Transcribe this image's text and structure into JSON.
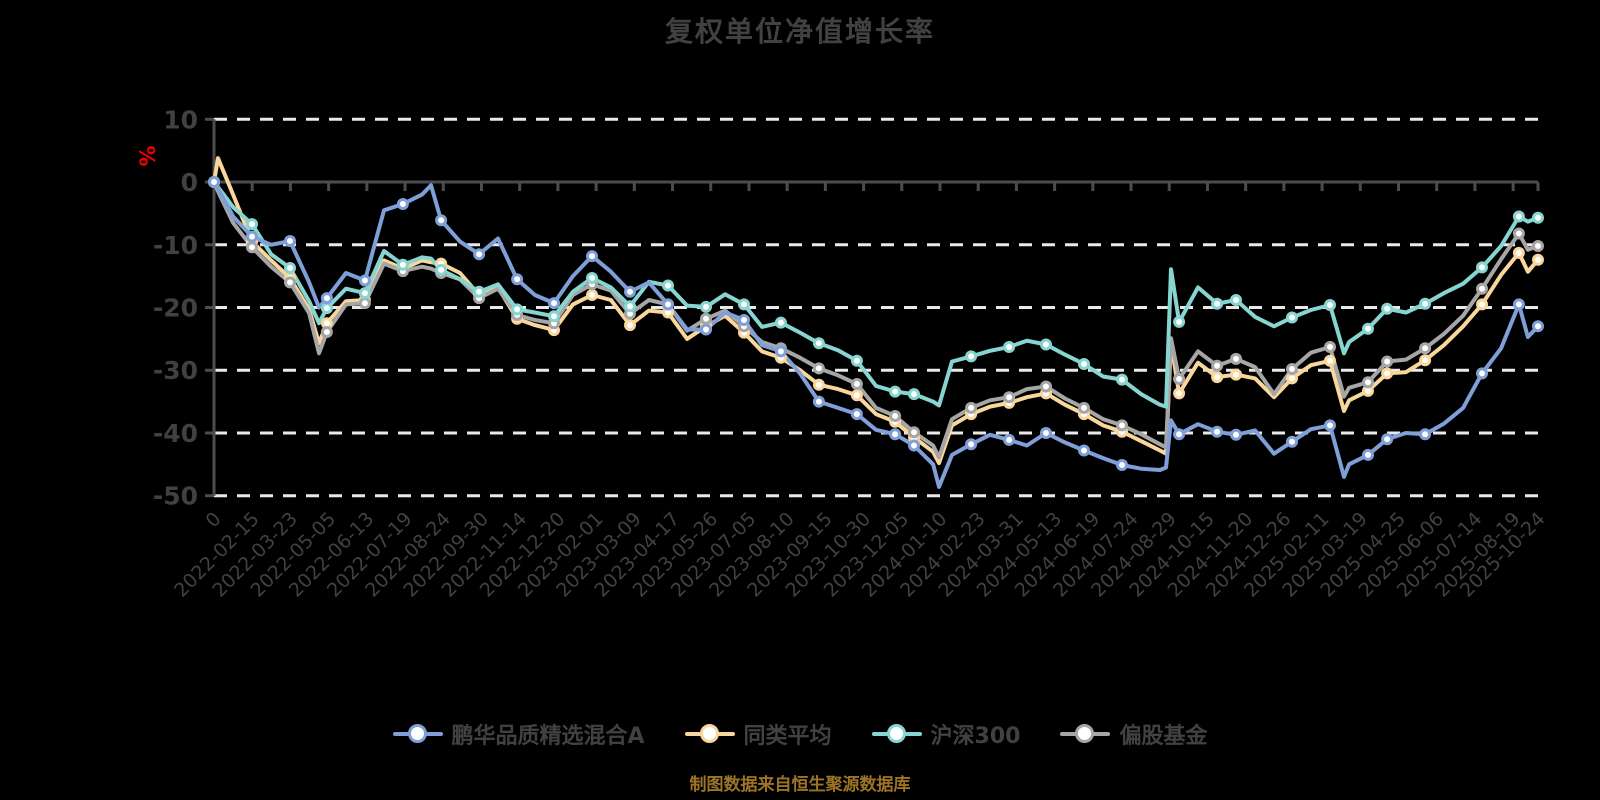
{
  "title": "复权单位净值增长率",
  "y_unit": "%",
  "footer": "制图数据来自恒生聚源数据库",
  "colors": {
    "background": "#000000",
    "title_text": "#414141",
    "axis_line": "#4C4C4C",
    "grid_line": "#E9E9E9",
    "tick_label": "#414141",
    "unit_label": "#EE0000",
    "footer_text": "#9D7426",
    "marker_fill": "#FFFFFF"
  },
  "chart_data": {
    "type": "line",
    "title": "复权单位净值增长率",
    "xlabel": "",
    "ylabel": "%",
    "ylim": [
      -50,
      10
    ],
    "y_ticks": [
      10,
      0,
      -10,
      -20,
      -30,
      -40,
      -50
    ],
    "y_gridlines": [
      10,
      -10,
      -20,
      -30,
      -40,
      -50
    ],
    "grid": "horizontal dashed white lines; solid dark line at 0 with down ticks",
    "legend_position": "bottom-center",
    "x_labels": [
      "0",
      "2022-02-15",
      "2022-03-23",
      "2022-05-05",
      "2022-06-13",
      "2022-07-19",
      "2022-08-24",
      "2022-09-30",
      "2022-11-14",
      "2022-12-20",
      "2023-02-01",
      "2023-03-09",
      "2023-04-17",
      "2023-05-26",
      "2023-07-05",
      "2023-08-10",
      "2023-09-15",
      "2023-10-30",
      "2023-12-05",
      "2024-01-10",
      "2024-02-23",
      "2024-03-31",
      "2024-05-13",
      "2024-06-19",
      "2024-07-24",
      "2024-08-29",
      "2024-10-15",
      "2024-11-20",
      "2024-12-26",
      "2025-02-11",
      "2025-03-19",
      "2025-04-25",
      "2025-06-06",
      "2025-07-14",
      "2025-08-19",
      "2025-10-24"
    ],
    "x": [
      0.0,
      0.3,
      1.44,
      2.87,
      4.31,
      5.74,
      7.18,
      7.93,
      8.53,
      9.97,
      11.4,
      12.84,
      14.27,
      15.71,
      16.39,
      17.15,
      18.58,
      20.02,
      21.45,
      22.89,
      24.24,
      25.68,
      27.11,
      28.55,
      29.98,
      31.42,
      32.85,
      34.29,
      35.73,
      37.16,
      38.6,
      40.03,
      41.39,
      42.82,
      44.26,
      45.69,
      47.13,
      48.56,
      50.0,
      51.44,
      52.87,
      54.31,
      54.76,
      55.74,
      57.18,
      58.61,
      60.05,
      61.4,
      62.84,
      64.27,
      65.71,
      67.15,
      68.58,
      70.02,
      71.45,
      71.9,
      72.28,
      72.89,
      74.32,
      75.76,
      77.19,
      78.63,
      80.06,
      81.42,
      82.85,
      84.29,
      85.35,
      85.73,
      87.16,
      88.6,
      90.03,
      91.47,
      92.9,
      94.34,
      95.77,
      97.21,
      98.56,
      99.24,
      100.0
    ],
    "marker_indices": [
      0,
      3,
      5,
      8,
      10,
      12,
      15,
      17,
      19,
      21,
      23,
      25,
      27,
      29,
      31,
      33,
      35,
      37,
      39,
      40,
      44,
      46,
      48,
      50,
      52,
      57,
      59,
      60,
      63,
      65,
      68,
      69,
      71,
      74,
      76,
      78
    ],
    "series": [
      {
        "name": "鹏华品质精选混合A",
        "color": "#7F9FD8",
        "values": [
          0,
          -1.0,
          -5.5,
          -8.7,
          -10.0,
          -9.4,
          -16.0,
          -20.0,
          -18.5,
          -14.5,
          -15.7,
          -4.5,
          -3.5,
          -2.0,
          -0.5,
          -6.1,
          -9.5,
          -11.5,
          -9.0,
          -15.5,
          -18.0,
          -19.3,
          -15.0,
          -11.8,
          -14.3,
          -17.5,
          -16.0,
          -19.5,
          -23.5,
          -23.5,
          -20.8,
          -22.0,
          -26.0,
          -27.0,
          -30.5,
          -35.0,
          -36.0,
          -37.0,
          -39.5,
          -40.2,
          -42.0,
          -45.0,
          -48.6,
          -43.5,
          -41.8,
          -40.3,
          -41.1,
          -42.0,
          -40.0,
          -41.5,
          -42.8,
          -44.0,
          -45.1,
          -45.7,
          -45.9,
          -45.5,
          -38.0,
          -40.2,
          -38.6,
          -39.8,
          -40.3,
          -39.6,
          -43.3,
          -41.4,
          -39.4,
          -38.8,
          -47.0,
          -45.0,
          -43.5,
          -41.0,
          -40.0,
          -40.2,
          -38.5,
          -36.0,
          -30.5,
          -26.5,
          -19.5,
          -24.7,
          -23.0
        ]
      },
      {
        "name": "同类平均",
        "color": "#F9D69B",
        "values": [
          0,
          3.8,
          -2.0,
          -9.5,
          -12.5,
          -15.3,
          -20.3,
          -25.7,
          -22.5,
          -19.0,
          -18.8,
          -12.5,
          -13.8,
          -12.5,
          -12.8,
          -13.0,
          -14.5,
          -18.0,
          -16.8,
          -21.8,
          -22.8,
          -23.6,
          -19.5,
          -18.0,
          -18.8,
          -22.8,
          -20.5,
          -20.8,
          -25.0,
          -23.0,
          -21.3,
          -24.0,
          -27.0,
          -28.0,
          -30.0,
          -32.3,
          -33.0,
          -34.0,
          -37.0,
          -38.2,
          -40.7,
          -43.0,
          -44.8,
          -38.8,
          -37.0,
          -35.8,
          -35.2,
          -34.3,
          -33.7,
          -35.5,
          -37.0,
          -38.8,
          -39.8,
          -41.3,
          -42.8,
          -43.3,
          -25.6,
          -33.7,
          -28.8,
          -31.1,
          -30.7,
          -31.3,
          -34.3,
          -31.3,
          -29.2,
          -28.5,
          -36.5,
          -34.8,
          -33.3,
          -30.5,
          -30.3,
          -28.4,
          -26.0,
          -23.0,
          -19.5,
          -14.8,
          -11.3,
          -14.3,
          -12.4
        ]
      },
      {
        "name": "沪深300",
        "color": "#87D5D1",
        "values": [
          0,
          -0.8,
          -4.0,
          -6.7,
          -11.5,
          -13.7,
          -19.0,
          -22.5,
          -20.1,
          -17.0,
          -17.7,
          -11.0,
          -13.2,
          -12.0,
          -12.2,
          -14.0,
          -15.5,
          -17.5,
          -16.3,
          -20.3,
          -20.8,
          -21.4,
          -17.5,
          -15.3,
          -16.8,
          -19.8,
          -15.9,
          -16.5,
          -19.7,
          -19.9,
          -17.9,
          -19.5,
          -23.1,
          -22.4,
          -24.0,
          -25.7,
          -26.8,
          -28.5,
          -32.5,
          -33.4,
          -33.8,
          -35.0,
          -35.6,
          -28.6,
          -27.8,
          -26.9,
          -26.3,
          -25.3,
          -25.9,
          -27.5,
          -29.0,
          -31.0,
          -31.5,
          -33.8,
          -35.5,
          -35.8,
          -13.9,
          -22.3,
          -16.8,
          -19.4,
          -18.8,
          -21.5,
          -23.0,
          -21.6,
          -20.4,
          -19.6,
          -27.3,
          -25.5,
          -23.4,
          -20.2,
          -20.8,
          -19.4,
          -17.7,
          -16.2,
          -13.6,
          -10.2,
          -5.5,
          -6.3,
          -5.7
        ]
      },
      {
        "name": "偏股基金",
        "color": "#A6A6A6",
        "values": [
          0,
          -1.5,
          -6.5,
          -10.4,
          -13.5,
          -16.0,
          -20.9,
          -27.3,
          -23.9,
          -19.5,
          -19.3,
          -13.0,
          -14.2,
          -13.5,
          -13.8,
          -14.5,
          -15.5,
          -18.5,
          -17.0,
          -21.2,
          -22.0,
          -22.5,
          -18.0,
          -16.3,
          -17.3,
          -21.0,
          -18.8,
          -19.5,
          -23.7,
          -21.8,
          -20.5,
          -23.0,
          -25.5,
          -26.5,
          -28.0,
          -29.7,
          -30.8,
          -32.2,
          -36.0,
          -37.3,
          -39.9,
          -42.0,
          -43.9,
          -37.8,
          -36.0,
          -34.8,
          -34.3,
          -33.0,
          -32.6,
          -34.5,
          -36.0,
          -37.8,
          -38.8,
          -40.2,
          -41.8,
          -42.3,
          -24.9,
          -31.4,
          -27.0,
          -29.3,
          -28.2,
          -29.5,
          -33.8,
          -29.8,
          -27.2,
          -26.3,
          -34.2,
          -32.8,
          -31.9,
          -28.6,
          -28.3,
          -26.5,
          -24.2,
          -21.3,
          -17.0,
          -12.3,
          -8.2,
          -10.8,
          -10.2
        ]
      }
    ]
  }
}
